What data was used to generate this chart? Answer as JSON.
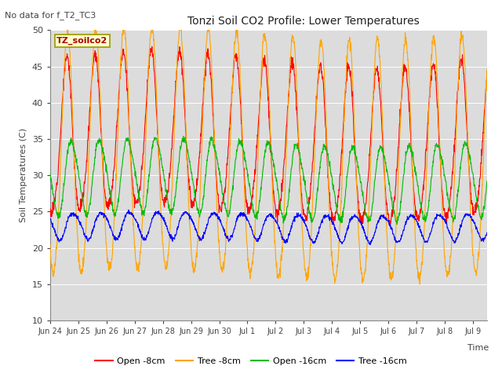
{
  "title": "Tonzi Soil CO2 Profile: Lower Temperatures",
  "subtitle": "No data for f_T2_TC3",
  "ylabel": "Soil Temperatures (C)",
  "xlabel": "Time",
  "ylim": [
    10,
    50
  ],
  "bg_color": "#dcdcdc",
  "legend_label": "TZ_soilco2",
  "series_colors": {
    "open8": "#ff0000",
    "tree8": "#ffa500",
    "open16": "#00bb00",
    "tree16": "#0000ff"
  },
  "legend_entries": [
    "Open -8cm",
    "Tree -8cm",
    "Open -16cm",
    "Tree -16cm"
  ],
  "x_ticklabels": [
    "Jun 24",
    "Jun 25",
    "Jun 26",
    "Jun 27",
    "Jun 28",
    "Jun 29",
    "Jun 30",
    "Jul 1",
    "Jul 2",
    "Jul 3",
    "Jul 4",
    "Jul 5",
    "Jul 6",
    "Jul 7",
    "Jul 8",
    "Jul 9"
  ],
  "yticks": [
    10,
    15,
    20,
    25,
    30,
    35,
    40,
    45,
    50
  ],
  "n_days": 15.5,
  "n_points": 1550
}
